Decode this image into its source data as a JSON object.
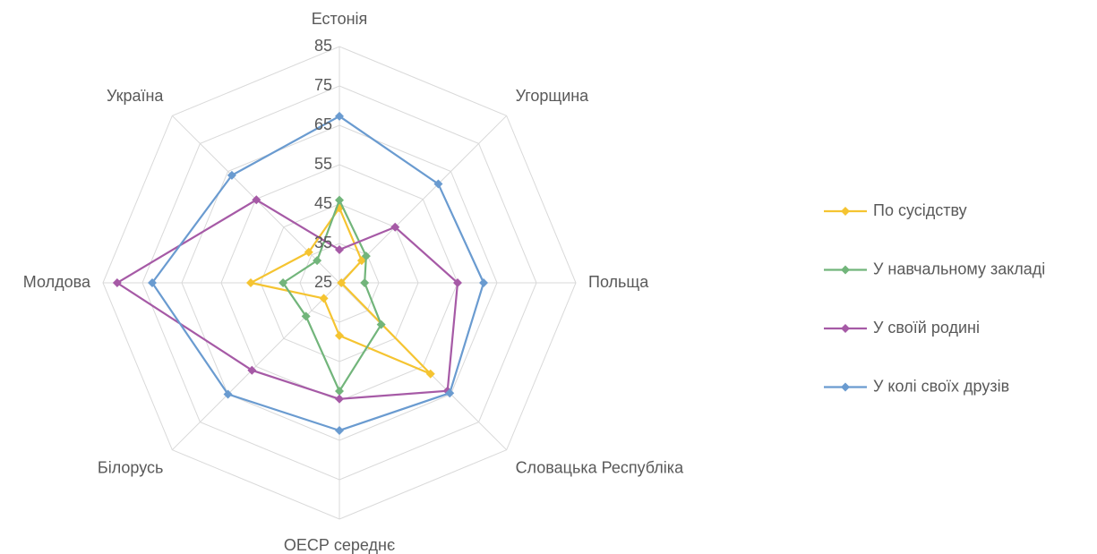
{
  "chart_data": {
    "type": "radar",
    "categories": [
      "Естонія",
      "Угорщина",
      "Польща",
      "Словацька Республіка",
      "ОЕСР середнє",
      "Білорусь",
      "Молдова",
      "Україна"
    ],
    "series": [
      {
        "name": "По сусідству",
        "color": "#f5c431",
        "values": [
          44,
          33,
          25.5,
          57.7,
          38.4,
          30.6,
          47.5,
          36
        ]
      },
      {
        "name": "У навчальному закладі",
        "color": "#72b57b",
        "values": [
          46,
          34.6,
          31.4,
          40,
          52.5,
          37,
          39.3,
          33
        ]
      },
      {
        "name": "У своїй родині",
        "color": "#a65aa6",
        "values": [
          33.4,
          45,
          55,
          63.8,
          54.5,
          56.4,
          81.4,
          54.8
        ]
      },
      {
        "name": "У колі своїх друзів",
        "color": "#6a9bd0",
        "values": [
          67.3,
          60.5,
          61.6,
          64.6,
          62.5,
          65,
          72.5,
          63.6
        ]
      }
    ],
    "ylim": [
      25,
      85
    ],
    "yticks": [
      25,
      35,
      45,
      55,
      65,
      75,
      85
    ],
    "grid": true,
    "legend": "right"
  }
}
